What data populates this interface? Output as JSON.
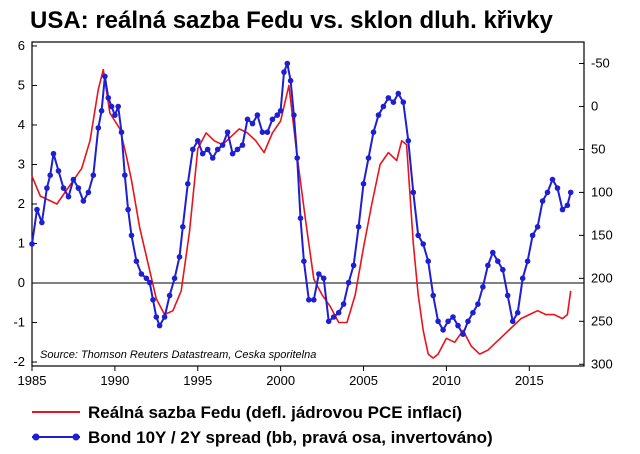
{
  "chart_data": {
    "type": "line",
    "title": "USA: reálná sazba Fedu vs. sklon dluh. křivky",
    "source": "Source: Thomson Reuters Datastream, Ceska sporitelna",
    "x_ticks": [
      "1985",
      "1990",
      "1995",
      "2000",
      "2005",
      "2010",
      "2015"
    ],
    "xlim": [
      1985,
      2018.3
    ],
    "y_left": {
      "ticks": [
        "-2",
        "-1",
        "0",
        "1",
        "2",
        "3",
        "4",
        "5",
        "6"
      ],
      "ylim": [
        -2.1,
        6.1
      ]
    },
    "y_right": {
      "ticks": [
        "-50",
        "0",
        "50",
        "100",
        "150",
        "200",
        "250",
        "300"
      ],
      "ylim": [
        -75,
        302
      ],
      "inverted": true
    },
    "grid": false,
    "legend_position": "bottom",
    "series": [
      {
        "name": "Reálná sazba Fedu (defl. jádrovou PCE inflací)",
        "axis": "left",
        "color": "#e8141b",
        "marker": false,
        "x": [
          1985.0,
          1985.5,
          1986.0,
          1986.5,
          1987.0,
          1987.5,
          1988.0,
          1988.5,
          1989.0,
          1989.3,
          1989.7,
          1990.0,
          1990.3,
          1990.7,
          1991.0,
          1991.5,
          1992.0,
          1992.5,
          1993.0,
          1993.5,
          1994.0,
          1994.5,
          1995.0,
          1995.5,
          1996.0,
          1996.5,
          1997.0,
          1997.5,
          1998.0,
          1998.5,
          1999.0,
          1999.5,
          2000.0,
          2000.5,
          2001.0,
          2001.5,
          2002.0,
          2002.5,
          2003.0,
          2003.5,
          2004.0,
          2004.5,
          2005.0,
          2005.5,
          2006.0,
          2006.5,
          2007.0,
          2007.3,
          2007.6,
          2008.0,
          2008.3,
          2008.6,
          2008.9,
          2009.2,
          2009.5,
          2010.0,
          2010.5,
          2011.0,
          2011.5,
          2012.0,
          2012.5,
          2013.0,
          2013.5,
          2014.0,
          2014.5,
          2015.0,
          2015.5,
          2016.0,
          2016.5,
          2017.0,
          2017.3,
          2017.5
        ],
        "values": [
          2.7,
          2.2,
          2.1,
          2.0,
          2.3,
          2.6,
          2.9,
          3.6,
          4.9,
          5.4,
          4.3,
          4.1,
          3.9,
          3.2,
          2.6,
          1.4,
          0.5,
          -0.4,
          -0.8,
          -0.7,
          -0.2,
          1.3,
          3.4,
          3.8,
          3.6,
          3.5,
          3.7,
          3.9,
          3.8,
          3.6,
          3.3,
          3.8,
          4.1,
          5.0,
          3.2,
          1.6,
          0.1,
          -0.3,
          -0.6,
          -1.0,
          -1.0,
          -0.3,
          0.9,
          2.0,
          3.0,
          3.3,
          3.1,
          3.6,
          3.5,
          1.0,
          -0.3,
          -1.2,
          -1.8,
          -1.9,
          -1.8,
          -1.4,
          -1.5,
          -1.2,
          -1.6,
          -1.8,
          -1.7,
          -1.5,
          -1.3,
          -1.1,
          -0.9,
          -0.8,
          -0.7,
          -0.8,
          -0.8,
          -0.9,
          -0.8,
          -0.2
        ]
      },
      {
        "name": "Bond 10Y / 2Y spread (bb, pravá osa, invertováno)",
        "axis": "right",
        "color": "#1f1fd2",
        "marker": true,
        "x": [
          1985.0,
          1985.3,
          1985.6,
          1985.9,
          1986.1,
          1986.3,
          1986.6,
          1986.9,
          1987.2,
          1987.5,
          1987.8,
          1988.1,
          1988.4,
          1988.7,
          1989.0,
          1989.2,
          1989.4,
          1989.6,
          1989.8,
          1990.0,
          1990.2,
          1990.4,
          1990.6,
          1990.8,
          1991.0,
          1991.3,
          1991.6,
          1991.9,
          1992.1,
          1992.3,
          1992.5,
          1992.7,
          1993.0,
          1993.3,
          1993.6,
          1993.9,
          1994.1,
          1994.4,
          1994.7,
          1995.0,
          1995.3,
          1995.6,
          1995.9,
          1996.2,
          1996.5,
          1996.8,
          1997.1,
          1997.4,
          1997.7,
          1998.0,
          1998.3,
          1998.6,
          1998.9,
          1999.2,
          1999.5,
          1999.8,
          2000.0,
          2000.2,
          2000.4,
          2000.6,
          2000.8,
          2001.0,
          2001.2,
          2001.4,
          2001.7,
          2002.0,
          2002.3,
          2002.6,
          2002.9,
          2003.2,
          2003.5,
          2003.8,
          2004.1,
          2004.4,
          2004.7,
          2005.0,
          2005.3,
          2005.6,
          2005.9,
          2006.2,
          2006.5,
          2006.8,
          2007.1,
          2007.4,
          2007.7,
          2008.0,
          2008.3,
          2008.6,
          2008.9,
          2009.2,
          2009.5,
          2009.8,
          2010.1,
          2010.4,
          2010.7,
          2011.0,
          2011.3,
          2011.6,
          2011.9,
          2012.2,
          2012.5,
          2012.8,
          2013.1,
          2013.4,
          2013.7,
          2014.0,
          2014.3,
          2014.6,
          2014.9,
          2015.2,
          2015.5,
          2015.8,
          2016.1,
          2016.4,
          2016.7,
          2017.0,
          2017.3,
          2017.5
        ],
        "values": [
          160,
          120,
          135,
          95,
          80,
          55,
          75,
          95,
          105,
          85,
          95,
          110,
          100,
          80,
          25,
          5,
          -35,
          -10,
          0,
          10,
          0,
          30,
          80,
          120,
          150,
          180,
          195,
          200,
          205,
          225,
          245,
          255,
          245,
          220,
          200,
          175,
          140,
          90,
          50,
          40,
          55,
          50,
          60,
          50,
          45,
          30,
          55,
          50,
          45,
          15,
          20,
          10,
          30,
          30,
          15,
          10,
          5,
          -40,
          -50,
          -30,
          10,
          60,
          130,
          180,
          225,
          225,
          195,
          200,
          250,
          245,
          240,
          230,
          205,
          185,
          140,
          90,
          60,
          30,
          10,
          0,
          -10,
          -5,
          -15,
          -5,
          40,
          100,
          150,
          160,
          180,
          220,
          250,
          260,
          250,
          245,
          255,
          265,
          250,
          240,
          230,
          210,
          185,
          170,
          180,
          190,
          220,
          250,
          240,
          200,
          180,
          150,
          140,
          110,
          100,
          85,
          95,
          120,
          115,
          100
        ]
      }
    ]
  }
}
